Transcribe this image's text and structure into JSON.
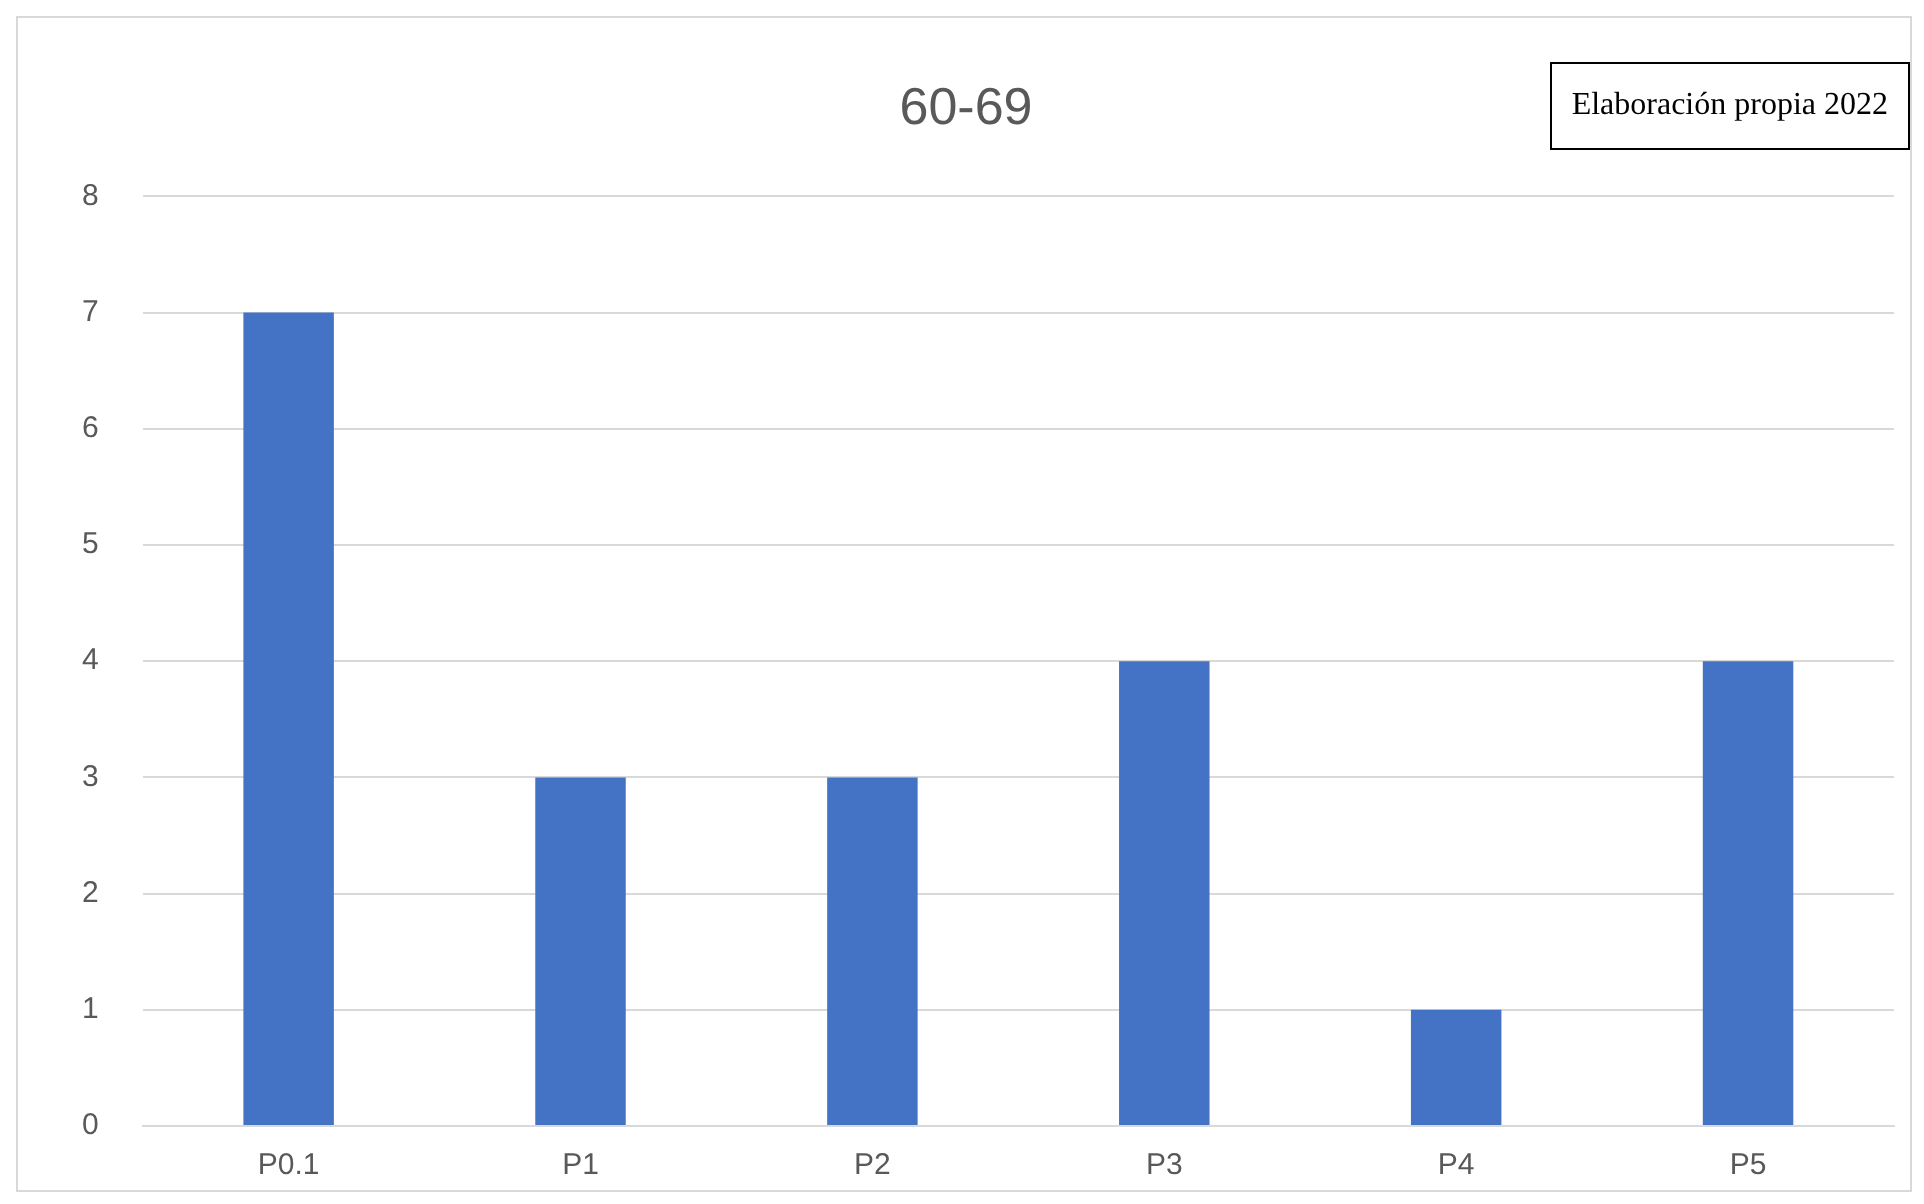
{
  "chart_data": {
    "type": "bar",
    "title": "60-69",
    "categories": [
      "P0.1",
      "P1",
      "P2",
      "P3",
      "P4",
      "P5"
    ],
    "values": [
      7,
      3,
      3,
      4,
      1,
      4
    ],
    "color": "#4472c4",
    "ylim": [
      0,
      8
    ],
    "yticks": [
      0,
      1,
      2,
      3,
      4,
      5,
      6,
      7,
      8
    ],
    "grid": "y",
    "legend": false,
    "annotations": [
      "Elaboración propia 2022"
    ]
  }
}
